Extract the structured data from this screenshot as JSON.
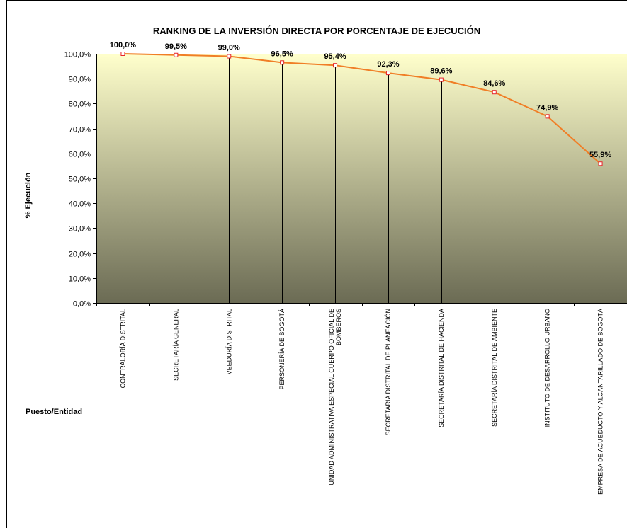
{
  "chart_data": {
    "type": "line",
    "title": "RANKING DE LA INVERSIÓN DIRECTA POR PORCENTAJE DE EJECUCIÓN",
    "ylabel": "% Ejecución",
    "xlabel": "Puesto/Entidad",
    "ylim": [
      0,
      100
    ],
    "y_ticks": [
      "0,0%",
      "10,0%",
      "20,0%",
      "30,0%",
      "40,0%",
      "50,0%",
      "60,0%",
      "70,0%",
      "80,0%",
      "90,0%",
      "100,0%"
    ],
    "categories": [
      [
        "CONTRALORÍA DISTRITAL"
      ],
      [
        "SECRETARÍA GENERAL"
      ],
      [
        "VEEDURÍA DISTRITAL"
      ],
      [
        "PERSONERÍA DE BOGOTÁ"
      ],
      [
        "UNIDAD ADMINISTRATIVA ESPECIAL CUERPO OFICIAL DE",
        "BOMBEROS"
      ],
      [
        "SECRETARÍA DISTRITAL DE PLANEACIÓN"
      ],
      [
        "SECRETARÍA DISTRITAL DE HACIENDA"
      ],
      [
        "SECRETARÍA DISTRITAL DE AMBIENTE"
      ],
      [
        "INSTITUTO DE DESARROLLO URBANO"
      ],
      [
        "EMPRESA DE ACUEDUCTO Y ALCANTARILLADO DE BOGOTÁ"
      ]
    ],
    "values": [
      100.0,
      99.5,
      99.0,
      96.5,
      95.4,
      92.3,
      89.6,
      84.6,
      74.9,
      55.9
    ],
    "data_labels": [
      "100,0%",
      "99,5%",
      "99,0%",
      "96,5%",
      "95,4%",
      "92,3%",
      "89,6%",
      "84,6%",
      "74,9%",
      "55,9%"
    ],
    "line_color": "#f07e26",
    "marker_color": "#e8252a",
    "plot_gradient": [
      "#ffffcc",
      "#6b6b54"
    ],
    "grid": false,
    "drop_lines": true,
    "legend": "none"
  }
}
